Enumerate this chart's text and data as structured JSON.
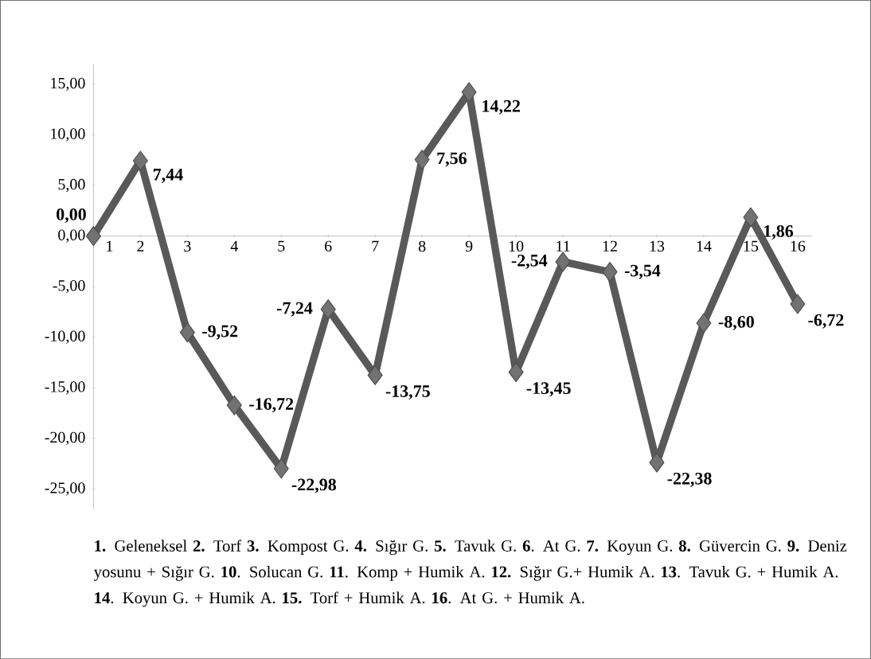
{
  "chart_data": {
    "type": "line",
    "categories": [
      "1",
      "2",
      "3",
      "4",
      "5",
      "6",
      "7",
      "8",
      "9",
      "10",
      "11",
      "12",
      "13",
      "14",
      "15",
      "16"
    ],
    "values": [
      0.0,
      7.44,
      -9.52,
      -16.72,
      -22.98,
      -7.24,
      -13.75,
      7.56,
      14.22,
      -13.45,
      -2.54,
      -3.54,
      -22.38,
      -8.6,
      1.86,
      -6.72
    ],
    "value_labels": [
      "0,00",
      "7,44",
      "-9,52",
      "-16,72",
      "-22,98",
      "-7,24",
      "-13,75",
      "7,56",
      "14,22",
      "-13,45",
      "-2,54",
      "-3,54",
      "-22,38",
      "-8,60",
      "1,86",
      "-6,72"
    ],
    "color": "#595959",
    "marker": "diamond",
    "line_style": "solid",
    "ylim": [
      -27,
      17
    ],
    "yticks": [
      {
        "value": -25,
        "label": "-25,00"
      },
      {
        "value": -20,
        "label": "-20,00"
      },
      {
        "value": -15,
        "label": "-15,00"
      },
      {
        "value": -10,
        "label": "-10,00"
      },
      {
        "value": -5,
        "label": "-5,00"
      },
      {
        "value": 0,
        "label": "0,00"
      },
      {
        "value": 5,
        "label": "5,00"
      },
      {
        "value": 10,
        "label": "10,00"
      },
      {
        "value": 15,
        "label": "15,00"
      }
    ],
    "annotations": [
      "**1.** Geleneksel **2.** Torf **3.** Kompost G. **4.** Sığır G. **5.** Tavuk G. **6**. At G. **7.** Koyun G. **8.** Güvercin G. **9.** Deniz yosunu + Sığır G. **10**. Solucan G. **11**. Komp + Humik A. **12.** Sığır G.+ Humik A. **13**. Tavuk G. + Humik A. **14**. Koyun G. + Humik A. **15.** Torf + Humik A. **16**. At G. + Humik A."
    ]
  }
}
